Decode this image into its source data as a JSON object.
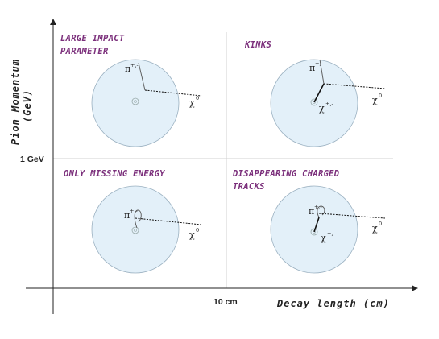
{
  "axes": {
    "x_title": "Decay length (cm)",
    "y_title_line1": "Pion Momentum",
    "y_title_line2": "(GeV)",
    "x_threshold_label": "10 cm",
    "y_threshold_label": "1 GeV"
  },
  "quadrants": {
    "top_left": {
      "title_line1": "LARGE IMPACT",
      "title_line2": "PARAMETER"
    },
    "top_right": {
      "title_line1": "KINKS"
    },
    "bottom_left": {
      "title_line1": "ONLY MISSING ENERGY"
    },
    "bottom_right": {
      "title_line1": "DISAPPEARING CHARGED",
      "title_line2": "TRACKS"
    }
  },
  "particles": {
    "pion": "π",
    "pion_charge": "+,-",
    "chi": "χ",
    "chi_neutral": "0",
    "chi_charged": "+,-"
  },
  "colors": {
    "detector_fill": "#e3f0f9",
    "detector_stroke": "#9ab0c0",
    "title": "#7b2f7b"
  }
}
